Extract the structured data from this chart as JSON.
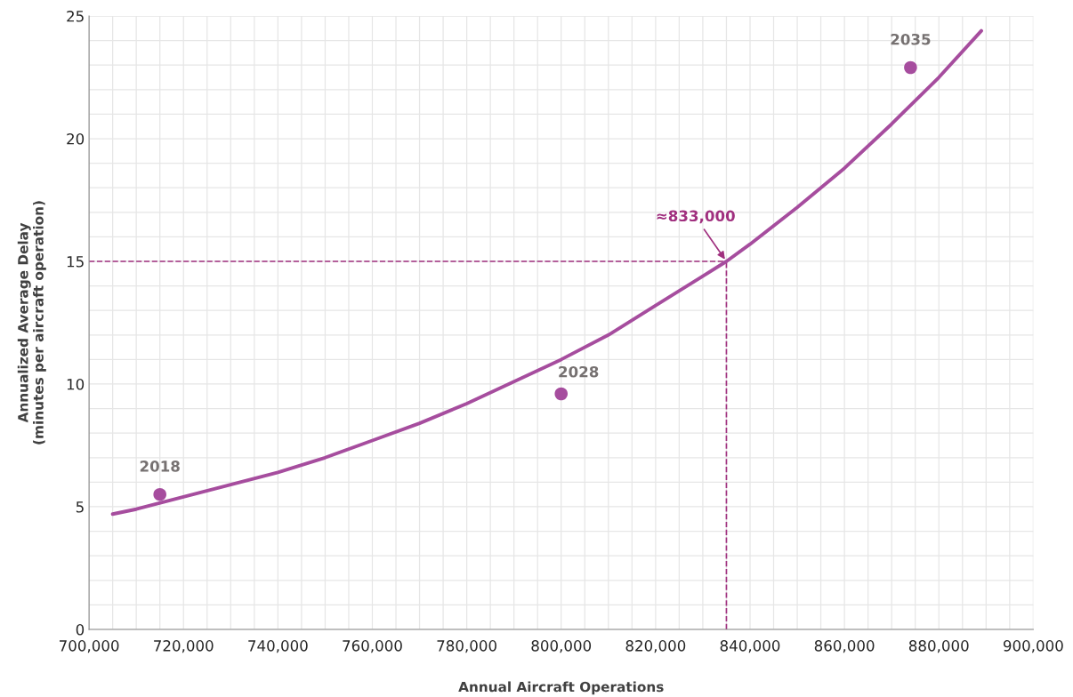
{
  "chart_data": {
    "type": "line",
    "xlabel": "Annual Aircraft Operations",
    "ylabel": "Annualized Average Delay\n(minutes per aircraft operation)",
    "xlim": [
      700000,
      900000
    ],
    "xticks": [
      {
        "value": 700000,
        "label": "700,000"
      },
      {
        "value": 720000,
        "label": "720,000"
      },
      {
        "value": 740000,
        "label": "740,000"
      },
      {
        "value": 760000,
        "label": "760,000"
      },
      {
        "value": 780000,
        "label": "780,000"
      },
      {
        "value": 800000,
        "label": "800,000"
      },
      {
        "value": 820000,
        "label": "820,000"
      },
      {
        "value": 840000,
        "label": "840,000"
      },
      {
        "value": 860000,
        "label": "860,000"
      },
      {
        "value": 880000,
        "label": "880,000"
      },
      {
        "value": 900000,
        "label": "900,000"
      }
    ],
    "ylim": [
      0,
      25
    ],
    "yticks": [
      0,
      5,
      10,
      15,
      20,
      25
    ],
    "grid": true,
    "series": [
      {
        "color": "#a64d9e",
        "marker": "none",
        "line_style": "solid",
        "x": [
          705000,
          710000,
          720000,
          730000,
          740000,
          750000,
          760000,
          770000,
          780000,
          790000,
          800000,
          810000,
          820000,
          830000,
          835000,
          840000,
          850000,
          860000,
          870000,
          880000,
          889000
        ],
        "values": [
          4.7,
          4.9,
          5.4,
          5.9,
          6.4,
          7.0,
          7.7,
          8.4,
          9.2,
          10.1,
          11.0,
          12.0,
          13.2,
          14.4,
          15.0,
          15.7,
          17.2,
          18.8,
          20.6,
          22.5,
          24.4
        ]
      },
      {
        "type": "scatter",
        "color": "#a64d9e",
        "marker": "circle",
        "x": [
          715000,
          800000,
          874000
        ],
        "values": [
          5.5,
          9.6,
          22.9
        ]
      }
    ],
    "ref_lines": [
      {
        "axis": "x",
        "value": 835000,
        "color": "#a0307f",
        "line_style": "dashed"
      },
      {
        "axis": "y",
        "value": 15,
        "color": "#a0307f",
        "line_style": "dashed"
      }
    ],
    "annotations": [
      {
        "text": "2018",
        "x": 715000,
        "y": 5.5
      },
      {
        "text": "2028",
        "x": 800000,
        "y": 9.6
      },
      {
        "text": "2035",
        "x": 874000,
        "y": 22.9
      },
      {
        "text": "≈833,000",
        "x": 835000,
        "y": 15
      }
    ]
  }
}
